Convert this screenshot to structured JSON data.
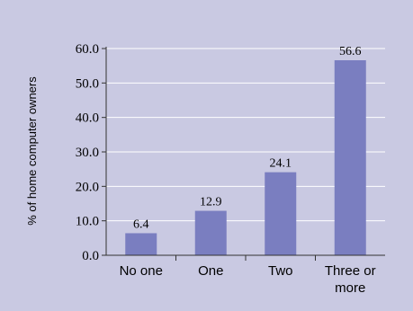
{
  "chart_data": {
    "type": "bar",
    "title": "",
    "xlabel": "",
    "ylabel": "% of home computer owners",
    "categories": [
      [
        "No one"
      ],
      [
        "One"
      ],
      [
        "Two"
      ],
      [
        "Three or",
        "more"
      ]
    ],
    "values": [
      6.4,
      12.9,
      24.1,
      56.6
    ],
    "value_labels": [
      "6.4",
      "12.9",
      "24.1",
      "56.6"
    ],
    "ylim": [
      0,
      60
    ],
    "yticks": [
      "0.0",
      "10.0",
      "20.0",
      "30.0",
      "40.0",
      "50.0",
      "60.0"
    ],
    "grid": true,
    "colors": {
      "background": "#c9c9e2",
      "bar": "#7a7ec0",
      "grid": "#ffffff",
      "axis": "#333333"
    }
  }
}
